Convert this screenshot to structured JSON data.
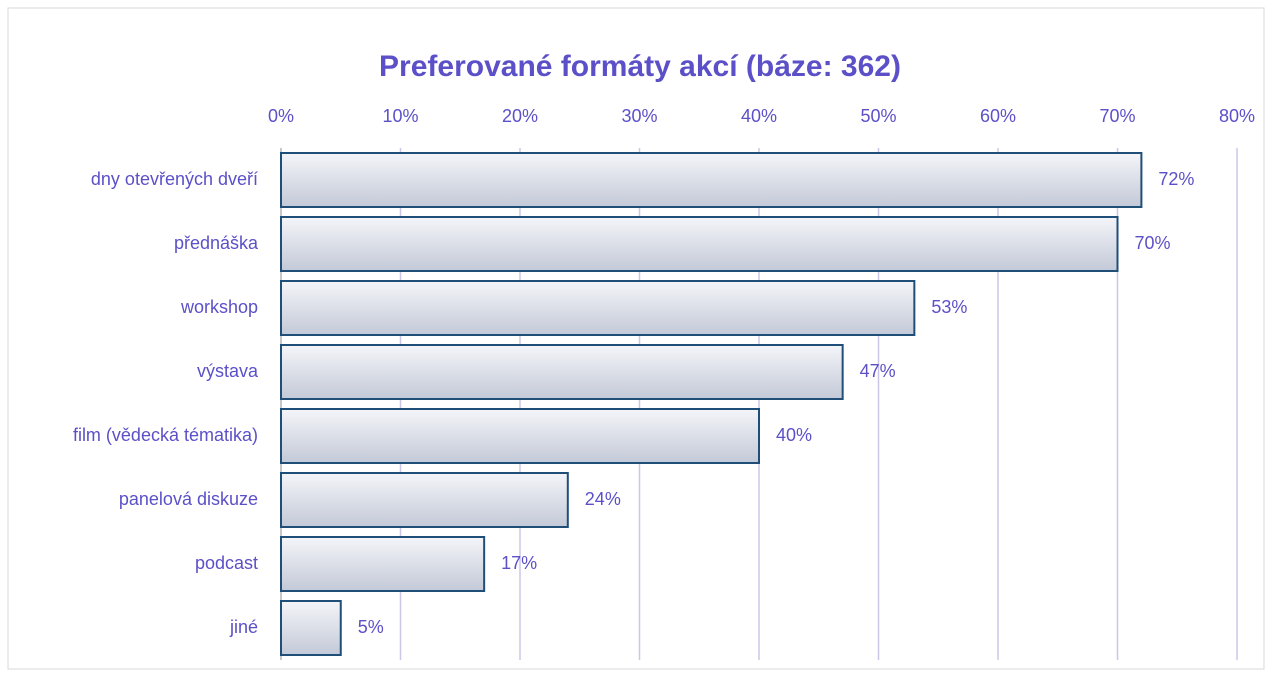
{
  "chart_data": {
    "type": "hbar",
    "title": "Preferované formáty akcí (báze: 362)",
    "categories": [
      "dny otevřených dveří",
      "přednáška",
      "workshop",
      "výstava",
      "film (vědecká tématika)",
      "panelová diskuze",
      "podcast",
      "jiné"
    ],
    "values": [
      72,
      70,
      53,
      47,
      40,
      24,
      17,
      5
    ],
    "value_labels": [
      "72%",
      "70%",
      "53%",
      "47%",
      "40%",
      "24%",
      "17%",
      "5%"
    ],
    "xlim": [
      0,
      80
    ],
    "xticks": [
      {
        "value": 0,
        "label": "0%"
      },
      {
        "value": 10,
        "label": "10%"
      },
      {
        "value": 20,
        "label": "20%"
      },
      {
        "value": 30,
        "label": "30%"
      },
      {
        "value": 40,
        "label": "40%"
      },
      {
        "value": 50,
        "label": "50%"
      },
      {
        "value": 60,
        "label": "60%"
      },
      {
        "value": 70,
        "label": "70%"
      },
      {
        "value": 80,
        "label": "80%"
      }
    ],
    "grid": true,
    "color": "#1f4e79"
  }
}
